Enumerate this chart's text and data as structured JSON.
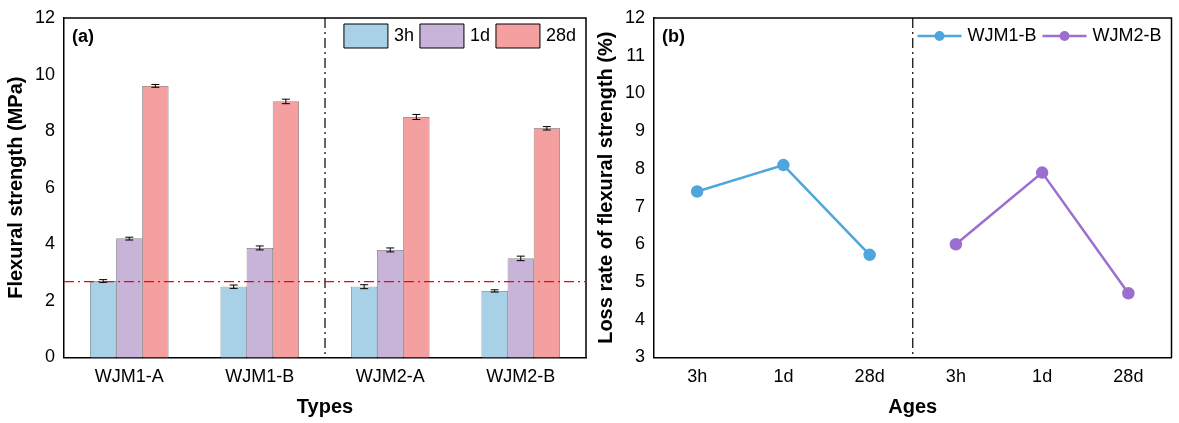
{
  "chart_data": [
    {
      "type": "bar",
      "xlabel": "Types",
      "ylabel": "Flexural strength (MPa)",
      "annotations": [
        "(a)"
      ],
      "categories": [
        "WJM1-A",
        "WJM1-B",
        "WJM2-A",
        "WJM2-B"
      ],
      "series": [
        {
          "name": "3h",
          "color": "#a8d0e6",
          "values": [
            2.7,
            2.5,
            2.5,
            2.35
          ],
          "errors": [
            0.05,
            0.06,
            0.07,
            0.04
          ]
        },
        {
          "name": "1d",
          "color": "#c8b4d8",
          "values": [
            4.2,
            3.87,
            3.8,
            3.5
          ],
          "errors": [
            0.05,
            0.07,
            0.07,
            0.08
          ]
        },
        {
          "name": "28d",
          "color": "#f4a0a0",
          "values": [
            9.6,
            9.05,
            8.5,
            8.1
          ],
          "errors": [
            0.05,
            0.08,
            0.09,
            0.06
          ]
        }
      ],
      "ylim": [
        0,
        12
      ],
      "yticks": [
        0,
        2,
        4,
        6,
        8,
        10,
        12
      ],
      "grid": false,
      "legend": "top right",
      "ref_lines": [
        {
          "axis": "y",
          "value": 2.68,
          "color": "#ff0000",
          "line_style": "dashdot"
        }
      ]
    },
    {
      "type": "line",
      "xlabel": "Ages",
      "ylabel": "Loss rate of flexural strength (%)",
      "annotations": [
        "(b)"
      ],
      "categories": [
        "3h",
        "1d",
        "28d",
        "3h",
        "1d",
        "28d"
      ],
      "series": [
        {
          "name": "WJM1-B",
          "color": "#4ea6dc",
          "values": [
            7.4,
            8.1,
            5.72,
            null,
            null,
            null
          ]
        },
        {
          "name": "WJM2-B",
          "color": "#9b6fcf",
          "values": [
            null,
            null,
            null,
            6.0,
            7.9,
            4.7
          ]
        }
      ],
      "ylim": [
        3,
        12
      ],
      "yticks": [
        3,
        4,
        5,
        6,
        7,
        8,
        9,
        10,
        11,
        12
      ],
      "grid": false,
      "legend": "top right",
      "marker": "circle",
      "line_style": "solid"
    }
  ]
}
